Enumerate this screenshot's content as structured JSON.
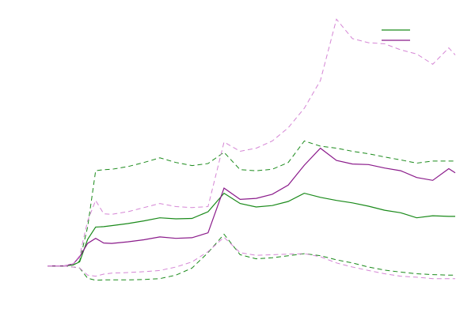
{
  "chart_data": {
    "type": "line",
    "title": "",
    "xlabel": "",
    "ylabel": "",
    "xlim": [
      0,
      25.4
    ],
    "ylim": [
      -0.9,
      12.6
    ],
    "grid": false,
    "legend": {
      "position": "top-right",
      "entries": [
        "",
        ""
      ]
    },
    "x": [
      0,
      1,
      1.6,
      2,
      2.5,
      3,
      3.5,
      4,
      5,
      6,
      7,
      8,
      9,
      10,
      11,
      12,
      13,
      14,
      15,
      16,
      17,
      18,
      19,
      20,
      21,
      22,
      23,
      24,
      25,
      25.4
    ],
    "series": [
      {
        "color": "#1a8a1a",
        "dash": false,
        "values": [
          0,
          0,
          0.05,
          0.2,
          1.3,
          1.9,
          1.92,
          1.97,
          2.07,
          2.2,
          2.35,
          2.3,
          2.32,
          2.65,
          3.55,
          3.05,
          2.88,
          2.95,
          3.15,
          3.55,
          3.35,
          3.2,
          3.08,
          2.92,
          2.72,
          2.6,
          2.35,
          2.45,
          2.42,
          2.42
        ]
      },
      {
        "color": "#1a8a1a",
        "dash": true,
        "values": [
          0,
          0,
          0.05,
          0.25,
          1.9,
          4.65,
          4.7,
          4.72,
          4.85,
          5.05,
          5.28,
          5.05,
          4.9,
          5.0,
          5.55,
          4.7,
          4.65,
          4.72,
          5.05,
          6.1,
          5.85,
          5.75,
          5.6,
          5.48,
          5.32,
          5.18,
          5.02,
          5.12,
          5.12,
          5.12
        ]
      },
      {
        "color": "#1a8a1a",
        "dash": true,
        "values": [
          0,
          0,
          -0.05,
          -0.1,
          -0.6,
          -0.7,
          -0.68,
          -0.68,
          -0.68,
          -0.66,
          -0.62,
          -0.45,
          -0.1,
          0.65,
          1.55,
          0.55,
          0.35,
          0.4,
          0.5,
          0.6,
          0.5,
          0.3,
          0.15,
          -0.05,
          -0.2,
          -0.3,
          -0.38,
          -0.42,
          -0.45,
          -0.45
        ]
      },
      {
        "color": "#8a1a8a",
        "dash": false,
        "values": [
          0,
          0,
          0.1,
          0.45,
          1.1,
          1.35,
          1.12,
          1.1,
          1.18,
          1.28,
          1.42,
          1.35,
          1.38,
          1.62,
          3.8,
          3.25,
          3.3,
          3.5,
          3.95,
          4.92,
          5.75,
          5.15,
          4.98,
          4.95,
          4.78,
          4.65,
          4.32,
          4.18,
          4.75,
          4.55
        ]
      },
      {
        "color": "#d586d5",
        "dash": true,
        "values": [
          0,
          0,
          0.1,
          0.5,
          2.2,
          3.2,
          2.55,
          2.52,
          2.65,
          2.85,
          3.05,
          2.9,
          2.85,
          2.9,
          6.05,
          5.6,
          5.75,
          6.1,
          6.75,
          7.7,
          9.05,
          12.05,
          11.1,
          10.9,
          10.85,
          10.55,
          10.35,
          9.85,
          10.65,
          10.3
        ]
      },
      {
        "color": "#d586d5",
        "dash": true,
        "values": [
          0,
          0,
          -0.05,
          -0.1,
          -0.45,
          -0.5,
          -0.4,
          -0.35,
          -0.32,
          -0.28,
          -0.22,
          -0.05,
          0.2,
          0.7,
          1.4,
          0.65,
          0.52,
          0.55,
          0.58,
          0.6,
          0.45,
          0.15,
          -0.05,
          -0.22,
          -0.38,
          -0.5,
          -0.55,
          -0.62,
          -0.62,
          -0.62
        ]
      }
    ]
  }
}
